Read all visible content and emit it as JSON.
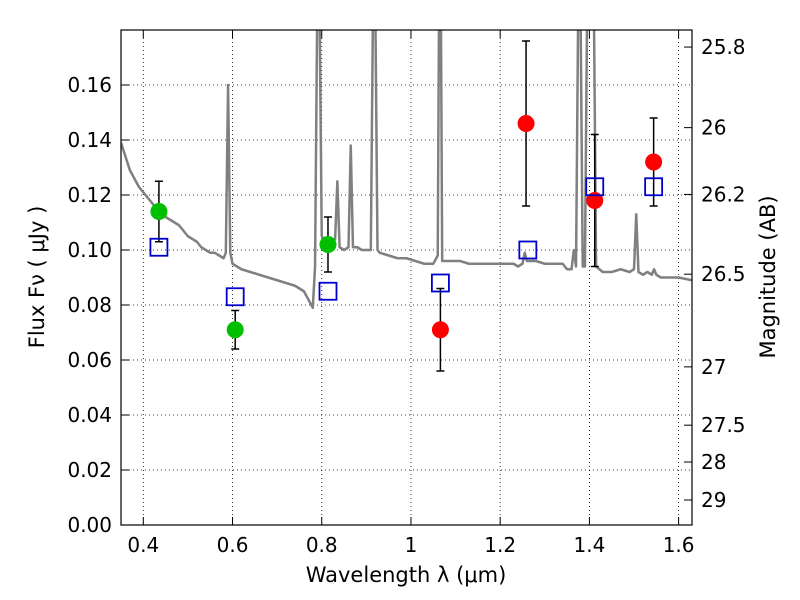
{
  "chart_data": {
    "type": "scatter",
    "xlabel": "Wavelength  λ (μm)",
    "ylabel": "Flux  Fν  ( μJy )",
    "y2label": "Magnitude (AB)",
    "xlim": [
      0.35,
      1.63
    ],
    "ylim": [
      0.0,
      0.18
    ],
    "grid": true,
    "x_ticks": [
      0.4,
      0.6,
      0.8,
      1.0,
      1.2,
      1.4,
      1.6
    ],
    "x_tick_labels": [
      "0.4",
      "0.6",
      "0.8",
      "1",
      "1.2",
      "1.4",
      "1.6"
    ],
    "y_ticks": [
      0.0,
      0.02,
      0.04,
      0.06,
      0.08,
      0.1,
      0.12,
      0.14,
      0.16
    ],
    "y_tick_labels": [
      "0.00",
      "0.02",
      "0.04",
      "0.06",
      "0.08",
      "0.10",
      "0.12",
      "0.14",
      "0.16"
    ],
    "y2_ticks": [
      {
        "label": "25.8",
        "flux": 0.1738
      },
      {
        "label": "26",
        "flux": 0.1445
      },
      {
        "label": "26.2",
        "flux": 0.1202
      },
      {
        "label": "26.5",
        "flux": 0.0912
      },
      {
        "label": "27",
        "flux": 0.0575
      },
      {
        "label": "27.5",
        "flux": 0.0363
      },
      {
        "label": "28",
        "flux": 0.0229
      },
      {
        "label": "29",
        "flux": 0.0091
      }
    ],
    "series": [
      {
        "kind": "line",
        "color": "#808080",
        "points": [
          [
            0.35,
            0.139
          ],
          [
            0.36,
            0.134
          ],
          [
            0.37,
            0.129
          ],
          [
            0.38,
            0.126
          ],
          [
            0.39,
            0.123
          ],
          [
            0.4,
            0.121
          ],
          [
            0.41,
            0.119
          ],
          [
            0.42,
            0.117
          ],
          [
            0.43,
            0.115
          ],
          [
            0.44,
            0.114
          ],
          [
            0.45,
            0.112
          ],
          [
            0.46,
            0.111
          ],
          [
            0.47,
            0.11
          ],
          [
            0.48,
            0.109
          ],
          [
            0.49,
            0.107
          ],
          [
            0.5,
            0.105
          ],
          [
            0.51,
            0.104
          ],
          [
            0.52,
            0.103
          ],
          [
            0.53,
            0.101
          ],
          [
            0.54,
            0.1
          ],
          [
            0.55,
            0.099
          ],
          [
            0.56,
            0.099
          ],
          [
            0.57,
            0.098
          ],
          [
            0.58,
            0.097
          ],
          [
            0.585,
            0.099
          ],
          [
            0.59,
            0.16
          ],
          [
            0.595,
            0.099
          ],
          [
            0.6,
            0.095
          ],
          [
            0.62,
            0.093
          ],
          [
            0.64,
            0.092
          ],
          [
            0.66,
            0.091
          ],
          [
            0.68,
            0.09
          ],
          [
            0.7,
            0.089
          ],
          [
            0.72,
            0.088
          ],
          [
            0.74,
            0.087
          ],
          [
            0.76,
            0.085
          ],
          [
            0.77,
            0.082
          ],
          [
            0.78,
            0.079
          ],
          [
            0.785,
            0.094
          ],
          [
            0.79,
            0.19
          ],
          [
            0.795,
            0.19
          ],
          [
            0.8,
            0.105
          ],
          [
            0.81,
            0.103
          ],
          [
            0.82,
            0.102
          ],
          [
            0.83,
            0.104
          ],
          [
            0.835,
            0.125
          ],
          [
            0.84,
            0.101
          ],
          [
            0.85,
            0.1
          ],
          [
            0.86,
            0.101
          ],
          [
            0.865,
            0.138
          ],
          [
            0.87,
            0.101
          ],
          [
            0.88,
            0.101
          ],
          [
            0.89,
            0.1
          ],
          [
            0.9,
            0.1
          ],
          [
            0.91,
            0.1
          ],
          [
            0.915,
            0.19
          ],
          [
            0.92,
            0.19
          ],
          [
            0.925,
            0.1
          ],
          [
            0.93,
            0.099
          ],
          [
            0.95,
            0.098
          ],
          [
            0.97,
            0.097
          ],
          [
            0.99,
            0.097
          ],
          [
            1.01,
            0.096
          ],
          [
            1.03,
            0.095
          ],
          [
            1.05,
            0.095
          ],
          [
            1.06,
            0.098
          ],
          [
            1.063,
            0.19
          ],
          [
            1.067,
            0.19
          ],
          [
            1.07,
            0.096
          ],
          [
            1.09,
            0.096
          ],
          [
            1.11,
            0.096
          ],
          [
            1.13,
            0.095
          ],
          [
            1.15,
            0.095
          ],
          [
            1.17,
            0.095
          ],
          [
            1.19,
            0.095
          ],
          [
            1.21,
            0.095
          ],
          [
            1.23,
            0.095
          ],
          [
            1.24,
            0.094
          ],
          [
            1.25,
            0.095
          ],
          [
            1.255,
            0.099
          ],
          [
            1.26,
            0.096
          ],
          [
            1.28,
            0.096
          ],
          [
            1.3,
            0.095
          ],
          [
            1.32,
            0.095
          ],
          [
            1.34,
            0.095
          ],
          [
            1.35,
            0.093
          ],
          [
            1.36,
            0.093
          ],
          [
            1.365,
            0.1
          ],
          [
            1.37,
            0.094
          ],
          [
            1.375,
            0.19
          ],
          [
            1.38,
            0.19
          ],
          [
            1.385,
            0.094
          ],
          [
            1.39,
            0.094
          ],
          [
            1.395,
            0.19
          ],
          [
            1.41,
            0.19
          ],
          [
            1.415,
            0.094
          ],
          [
            1.43,
            0.092
          ],
          [
            1.45,
            0.092
          ],
          [
            1.47,
            0.093
          ],
          [
            1.49,
            0.092
          ],
          [
            1.5,
            0.093
          ],
          [
            1.505,
            0.113
          ],
          [
            1.51,
            0.092
          ],
          [
            1.52,
            0.091
          ],
          [
            1.53,
            0.092
          ],
          [
            1.54,
            0.091
          ],
          [
            1.545,
            0.093
          ],
          [
            1.55,
            0.091
          ],
          [
            1.56,
            0.09
          ],
          [
            1.58,
            0.09
          ],
          [
            1.6,
            0.09
          ],
          [
            1.63,
            0.089
          ]
        ]
      },
      {
        "kind": "points",
        "marker": "circle",
        "color": "#00bf00",
        "points": [
          {
            "x": 0.435,
            "y": 0.114,
            "err": 0.011
          },
          {
            "x": 0.606,
            "y": 0.071,
            "err": 0.007
          },
          {
            "x": 0.814,
            "y": 0.102,
            "err": 0.01
          }
        ]
      },
      {
        "kind": "points",
        "marker": "circle",
        "color": "#ff0000",
        "points": [
          {
            "x": 1.066,
            "y": 0.071,
            "err": 0.015
          },
          {
            "x": 1.258,
            "y": 0.146,
            "err": 0.03
          },
          {
            "x": 1.412,
            "y": 0.118,
            "err": 0.024
          },
          {
            "x": 1.544,
            "y": 0.132,
            "err": 0.016
          }
        ]
      },
      {
        "kind": "points",
        "marker": "square",
        "color": "#0000cc",
        "points": [
          {
            "x": 0.435,
            "y": 0.101
          },
          {
            "x": 0.606,
            "y": 0.083
          },
          {
            "x": 0.814,
            "y": 0.085
          },
          {
            "x": 1.066,
            "y": 0.088
          },
          {
            "x": 1.262,
            "y": 0.1
          },
          {
            "x": 1.412,
            "y": 0.123
          },
          {
            "x": 1.544,
            "y": 0.123
          }
        ]
      }
    ]
  }
}
